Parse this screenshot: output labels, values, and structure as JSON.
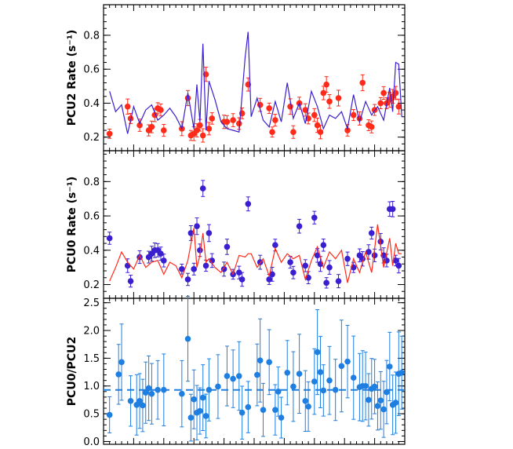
{
  "chart_data": [
    {
      "type": "scatter",
      "ylabel": "PCU2 Rate (s⁻¹)",
      "ylim": [
        0.12,
        0.98
      ],
      "yticks": [
        0.2,
        0.4,
        0.6,
        0.8
      ],
      "yticklabels": [
        "0.2",
        "0.4",
        "0.6",
        "0.8"
      ],
      "xlim": [
        0,
        100
      ],
      "series": [
        {
          "style": "points",
          "color": "#ff2a1a",
          "x": [
            2,
            8,
            9,
            12,
            15,
            16,
            17,
            18,
            19,
            20,
            26,
            28,
            29,
            30,
            31,
            32,
            33,
            34,
            35,
            36,
            40,
            41,
            43,
            45,
            46,
            48,
            52,
            55,
            56,
            57,
            62,
            63,
            65,
            67,
            68,
            70,
            71,
            72,
            73,
            74,
            75,
            78,
            81,
            83,
            85,
            86,
            88,
            89,
            90,
            92,
            93,
            94,
            95,
            96,
            97,
            98
          ],
          "y": [
            0.22,
            0.38,
            0.31,
            0.27,
            0.24,
            0.26,
            0.33,
            0.37,
            0.36,
            0.24,
            0.25,
            0.43,
            0.21,
            0.22,
            0.24,
            0.27,
            0.21,
            0.57,
            0.25,
            0.31,
            0.29,
            0.29,
            0.3,
            0.28,
            0.34,
            0.51,
            0.39,
            0.37,
            0.23,
            0.3,
            0.38,
            0.23,
            0.4,
            0.36,
            0.31,
            0.33,
            0.27,
            0.23,
            0.46,
            0.51,
            0.41,
            0.43,
            0.24,
            0.33,
            0.31,
            0.52,
            0.27,
            0.26,
            0.36,
            0.4,
            0.46,
            0.4,
            0.42,
            0.44,
            0.46,
            0.38
          ]
        },
        {
          "style": "line",
          "color": "#3a1fd0",
          "x": [
            2,
            4,
            6,
            8,
            10,
            12,
            14,
            16,
            18,
            20,
            22,
            24,
            26,
            28,
            30,
            31,
            32,
            33,
            34,
            35,
            37,
            39,
            41,
            43,
            45,
            47,
            48,
            49,
            51,
            53,
            55,
            57,
            59,
            61,
            63,
            65,
            67,
            69,
            71,
            73,
            75,
            77,
            79,
            81,
            83,
            85,
            87,
            89,
            91,
            93,
            95,
            96,
            97,
            98,
            99
          ],
          "y": [
            0.47,
            0.35,
            0.39,
            0.22,
            0.38,
            0.28,
            0.36,
            0.39,
            0.3,
            0.33,
            0.37,
            0.32,
            0.25,
            0.46,
            0.25,
            0.51,
            0.29,
            0.75,
            0.24,
            0.53,
            0.42,
            0.29,
            0.25,
            0.24,
            0.23,
            0.67,
            0.82,
            0.32,
            0.43,
            0.3,
            0.26,
            0.41,
            0.29,
            0.52,
            0.31,
            0.4,
            0.28,
            0.47,
            0.38,
            0.25,
            0.33,
            0.31,
            0.35,
            0.25,
            0.45,
            0.29,
            0.41,
            0.33,
            0.38,
            0.3,
            0.49,
            0.35,
            0.64,
            0.63,
            0.32
          ]
        }
      ]
    },
    {
      "type": "scatter",
      "ylabel": "PCU0 Rate (s⁻¹)",
      "ylim": [
        0.12,
        0.98
      ],
      "yticks": [
        0.2,
        0.4,
        0.6,
        0.8
      ],
      "yticklabels": [
        "0.2",
        "0.4",
        "0.6",
        "0.8"
      ],
      "xlim": [
        0,
        100
      ],
      "series": [
        {
          "style": "points",
          "color": "#3a1fd0",
          "x": [
            2,
            8,
            9,
            12,
            15,
            16,
            17,
            18,
            19,
            20,
            26,
            28,
            29,
            30,
            31,
            32,
            33,
            34,
            35,
            36,
            40,
            41,
            43,
            45,
            46,
            48,
            52,
            55,
            56,
            57,
            62,
            63,
            65,
            67,
            68,
            70,
            71,
            72,
            73,
            74,
            75,
            78,
            81,
            83,
            85,
            86,
            88,
            89,
            90,
            92,
            93,
            94,
            95,
            96,
            97,
            98
          ],
          "y": [
            0.47,
            0.31,
            0.22,
            0.36,
            0.36,
            0.38,
            0.4,
            0.4,
            0.38,
            0.34,
            0.29,
            0.23,
            0.5,
            0.29,
            0.54,
            0.4,
            0.76,
            0.31,
            0.5,
            0.34,
            0.29,
            0.42,
            0.26,
            0.27,
            0.23,
            0.67,
            0.33,
            0.23,
            0.26,
            0.43,
            0.33,
            0.27,
            0.54,
            0.31,
            0.24,
            0.59,
            0.37,
            0.32,
            0.43,
            0.21,
            0.3,
            0.22,
            0.35,
            0.3,
            0.37,
            0.35,
            0.39,
            0.5,
            0.37,
            0.45,
            0.37,
            0.34,
            0.64,
            0.64,
            0.34,
            0.31
          ]
        },
        {
          "style": "line",
          "color": "#ff2a1a",
          "x": [
            2,
            4,
            6,
            8,
            10,
            12,
            14,
            16,
            18,
            20,
            22,
            24,
            26,
            28,
            30,
            31,
            32,
            33,
            34,
            35,
            37,
            39,
            41,
            43,
            45,
            47,
            48,
            49,
            51,
            53,
            55,
            57,
            59,
            61,
            63,
            65,
            67,
            69,
            71,
            73,
            75,
            77,
            79,
            81,
            83,
            85,
            87,
            89,
            91,
            93,
            95,
            96,
            97,
            98,
            99
          ],
          "y": [
            0.22,
            0.3,
            0.39,
            0.33,
            0.29,
            0.37,
            0.3,
            0.33,
            0.34,
            0.26,
            0.33,
            0.31,
            0.24,
            0.34,
            0.53,
            0.3,
            0.37,
            0.5,
            0.33,
            0.35,
            0.3,
            0.27,
            0.33,
            0.26,
            0.37,
            0.36,
            0.38,
            0.38,
            0.3,
            0.35,
            0.25,
            0.41,
            0.33,
            0.38,
            0.35,
            0.37,
            0.23,
            0.34,
            0.42,
            0.3,
            0.39,
            0.35,
            0.4,
            0.21,
            0.35,
            0.27,
            0.39,
            0.27,
            0.55,
            0.3,
            0.47,
            0.31,
            0.44,
            0.38,
            0.38
          ]
        }
      ]
    },
    {
      "type": "scatter",
      "ylabel": "PCU0/PCU2",
      "ylim": [
        -0.05,
        2.58
      ],
      "yticks": [
        0.0,
        0.5,
        1.0,
        1.5,
        2.0,
        2.5
      ],
      "yticklabels": [
        "0.0",
        "0.5",
        "1.0",
        "1.5",
        "2.0",
        "2.5"
      ],
      "xlim": [
        0,
        100
      ],
      "reference_line": {
        "y": 0.93,
        "style": "dashed",
        "color": "#1f7fe0"
      },
      "series": [
        {
          "style": "points",
          "color": "#1f7fe0",
          "x": [
            2,
            5,
            6,
            9,
            11,
            12,
            13,
            14,
            15,
            16,
            18,
            20,
            26,
            28,
            29,
            30,
            31,
            32,
            33,
            34,
            35,
            38,
            41,
            43,
            45,
            46,
            48,
            51,
            52,
            53,
            55,
            57,
            58,
            59,
            61,
            63,
            65,
            67,
            68,
            70,
            71,
            72,
            73,
            75,
            77,
            79,
            81,
            83,
            85,
            86,
            87,
            88,
            89,
            90,
            91,
            92,
            93,
            94,
            95,
            96,
            97,
            98,
            99
          ],
          "y": [
            0.48,
            1.21,
            1.43,
            0.73,
            0.66,
            0.73,
            0.65,
            0.88,
            0.96,
            0.86,
            0.93,
            0.93,
            0.86,
            1.85,
            0.43,
            0.76,
            0.52,
            0.55,
            0.79,
            0.46,
            0.93,
            0.99,
            1.18,
            1.13,
            1.18,
            0.52,
            0.62,
            1.2,
            1.46,
            0.57,
            1.43,
            0.57,
            0.9,
            0.43,
            1.24,
            0.99,
            1.22,
            0.73,
            0.63,
            1.08,
            1.61,
            1.25,
            0.92,
            1.1,
            0.93,
            1.36,
            1.44,
            1.15,
            0.98,
            1.0,
            1.0,
            0.75,
            0.95,
            0.99,
            0.64,
            0.74,
            0.58,
            0.89,
            1.35,
            0.66,
            0.7,
            1.22,
            1.24
          ]
        }
      ]
    }
  ]
}
